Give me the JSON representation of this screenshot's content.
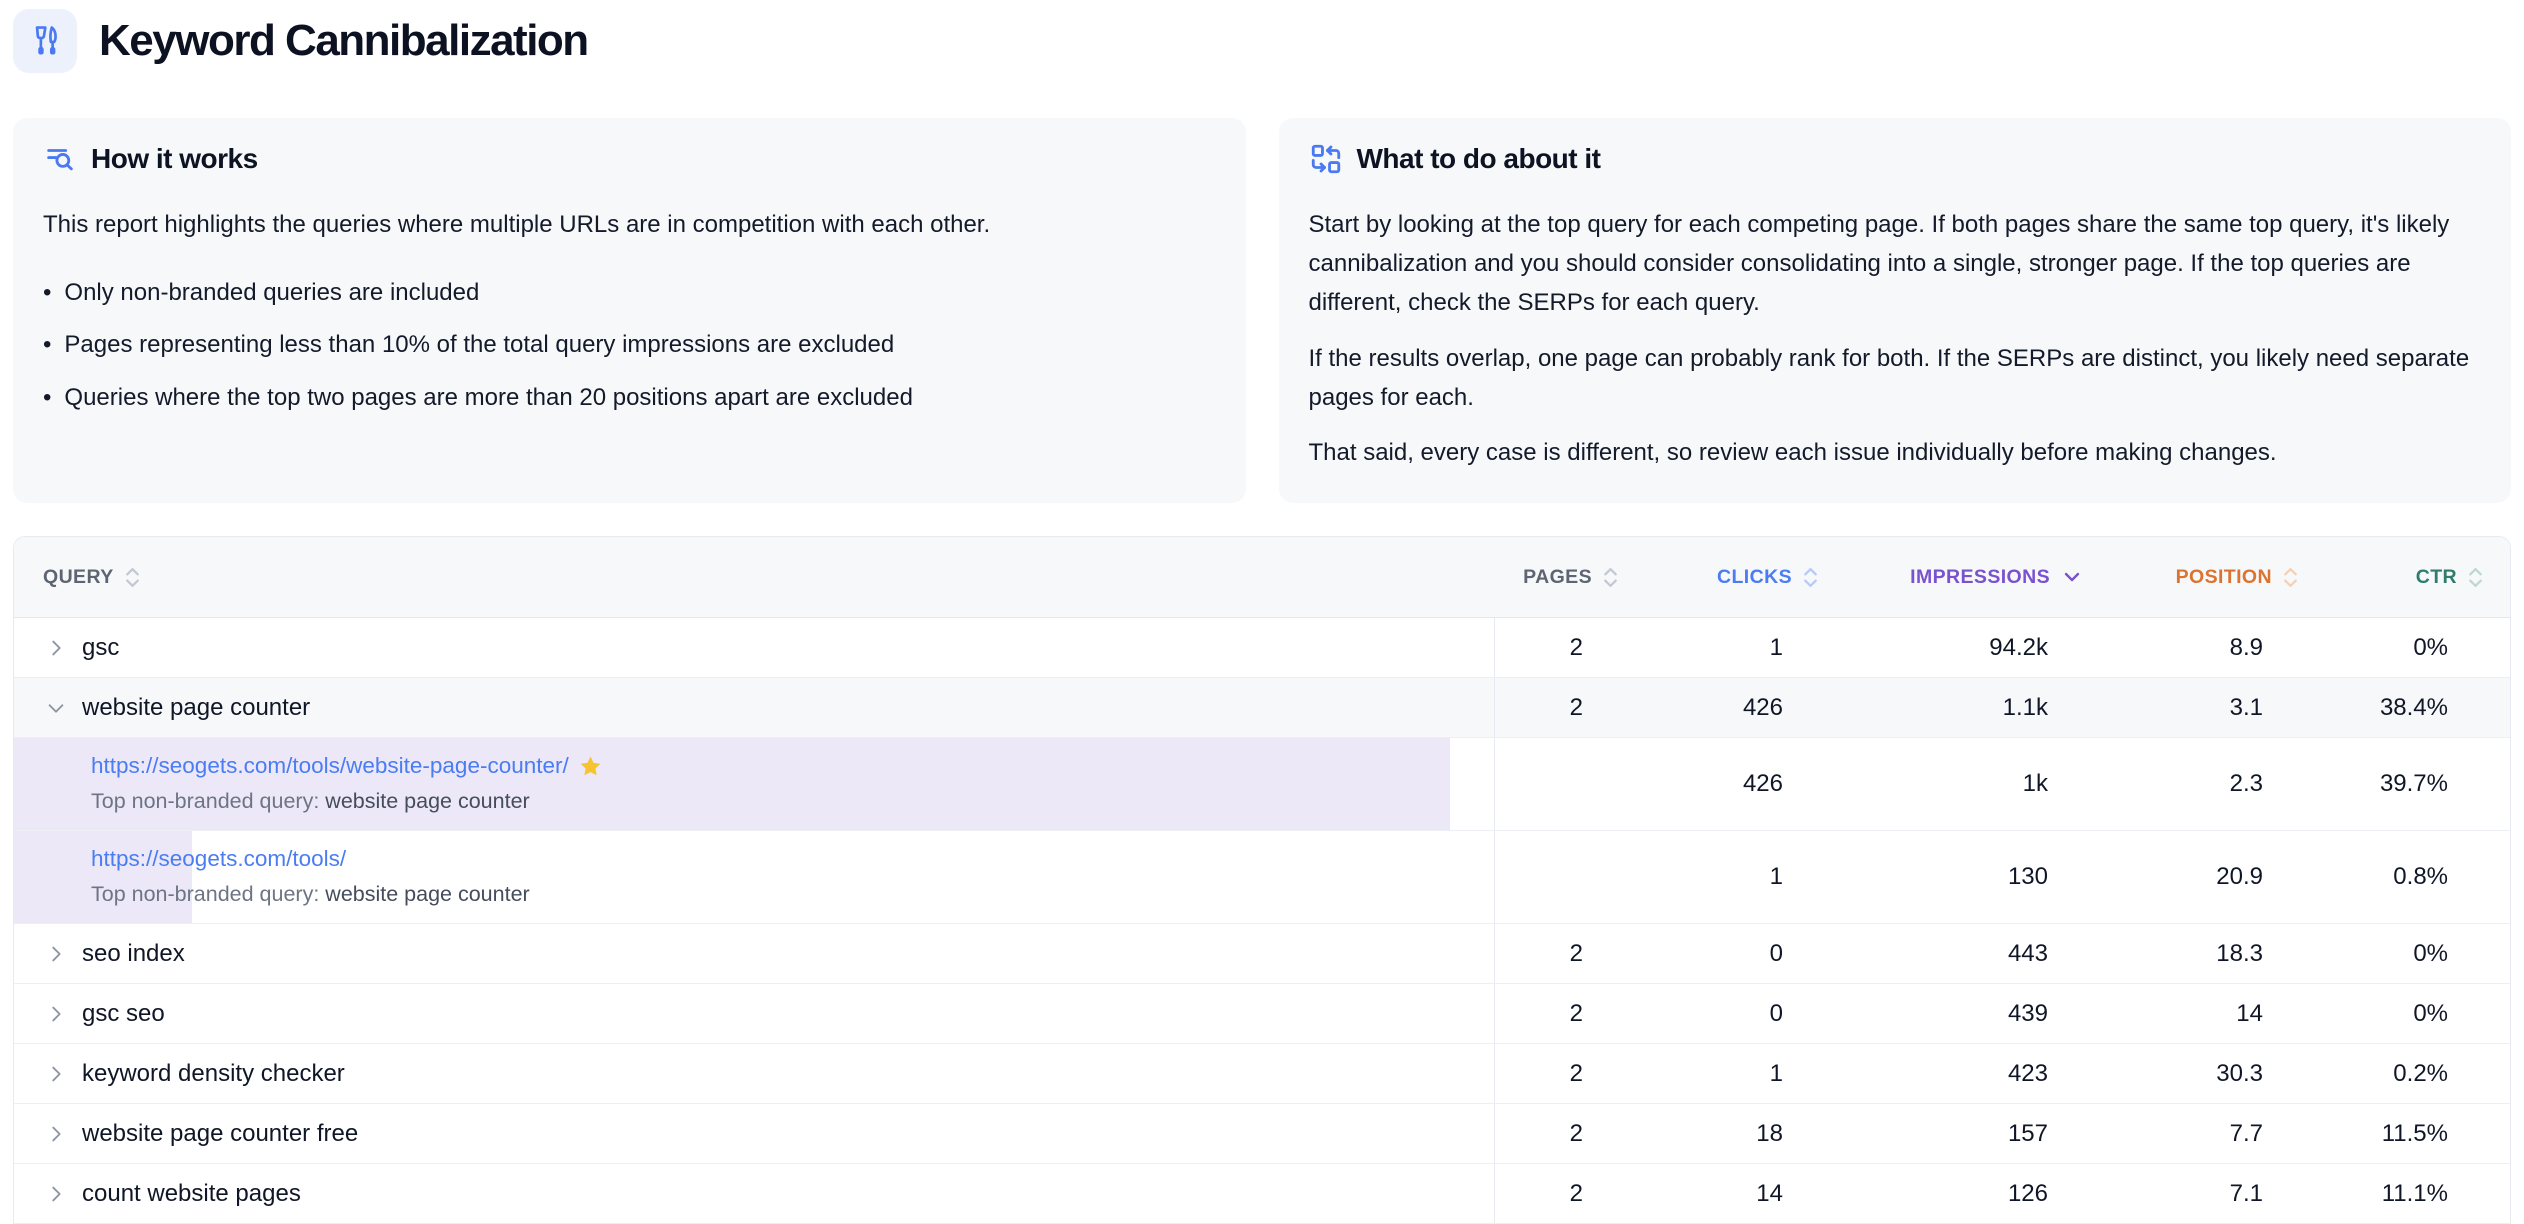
{
  "page": {
    "title": "Keyword Cannibalization"
  },
  "cards": {
    "how_it_works": {
      "title": "How it works",
      "intro": "This report highlights the queries where multiple URLs are in competition with each other.",
      "bullets": [
        "Only non-branded queries are included",
        "Pages representing less than 10% of the total query impressions are excluded",
        "Queries where the top two pages are more than 20 positions apart are excluded"
      ]
    },
    "what_to_do": {
      "title": "What to do about it",
      "paragraphs": [
        "Start by looking at the top query for each competing page. If both pages share the same top query, it's likely cannibalization and you should consider consolidating into a single, stronger page. If the top queries are different, check the SERPs for each query.",
        "If the results overlap, one page can probably rank for both. If the SERPs are distinct, you likely need separate pages for each.",
        "That said, every case is different, so review each issue individually before making changes."
      ]
    }
  },
  "table": {
    "columns": [
      {
        "id": "query",
        "label": "QUERY",
        "color": "#5d6573",
        "chevron_color": "#c3c9d2",
        "sort": "both"
      },
      {
        "id": "pages",
        "label": "PAGES",
        "color": "#5d6573",
        "chevron_color": "#c3c9d2",
        "sort": "both"
      },
      {
        "id": "clicks",
        "label": "CLICKS",
        "color": "#4c7cf1",
        "chevron_color": "#b7c9f8",
        "sort": "both"
      },
      {
        "id": "impressions",
        "label": "IMPRESSIONS",
        "color": "#7a52cf",
        "chevron_color": "#7a52cf",
        "sort": "desc"
      },
      {
        "id": "position",
        "label": "POSITION",
        "color": "#dc7431",
        "chevron_color": "#f3d0b8",
        "sort": "both"
      },
      {
        "id": "ctr",
        "label": "CTR",
        "color": "#2f7d6d",
        "chevron_color": "#bdd8d1",
        "sort": "both"
      }
    ],
    "rows": [
      {
        "type": "query",
        "query": "gsc",
        "expanded": false,
        "pages": "2",
        "clicks": "1",
        "impressions": "94.2k",
        "position": "8.9",
        "ctr": "0%"
      },
      {
        "type": "query",
        "query": "website page counter",
        "expanded": true,
        "pages": "2",
        "clicks": "426",
        "impressions": "1.1k",
        "position": "3.1",
        "ctr": "38.4%"
      },
      {
        "type": "page",
        "url": "https://seogets.com/tools/website-page-counter/",
        "starred": true,
        "top_query_label": "Top non-branded query:",
        "top_query": "website page counter",
        "bar_pct": 97,
        "pages": "",
        "clicks": "426",
        "impressions": "1k",
        "position": "2.3",
        "ctr": "39.7%"
      },
      {
        "type": "page",
        "url": "https://seogets.com/tools/",
        "starred": false,
        "top_query_label": "Top non-branded query:",
        "top_query": "website page counter",
        "bar_pct": 12,
        "pages": "",
        "clicks": "1",
        "impressions": "130",
        "position": "20.9",
        "ctr": "0.8%"
      },
      {
        "type": "query",
        "query": "seo index",
        "expanded": false,
        "pages": "2",
        "clicks": "0",
        "impressions": "443",
        "position": "18.3",
        "ctr": "0%"
      },
      {
        "type": "query",
        "query": "gsc seo",
        "expanded": false,
        "pages": "2",
        "clicks": "0",
        "impressions": "439",
        "position": "14",
        "ctr": "0%"
      },
      {
        "type": "query",
        "query": "keyword density checker",
        "expanded": false,
        "pages": "2",
        "clicks": "1",
        "impressions": "423",
        "position": "30.3",
        "ctr": "0.2%"
      },
      {
        "type": "query",
        "query": "website page counter free",
        "expanded": false,
        "pages": "2",
        "clicks": "18",
        "impressions": "157",
        "position": "7.7",
        "ctr": "11.5%"
      },
      {
        "type": "query",
        "query": "count website pages",
        "expanded": false,
        "pages": "2",
        "clicks": "14",
        "impressions": "126",
        "position": "7.1",
        "ctr": "11.1%"
      }
    ]
  }
}
